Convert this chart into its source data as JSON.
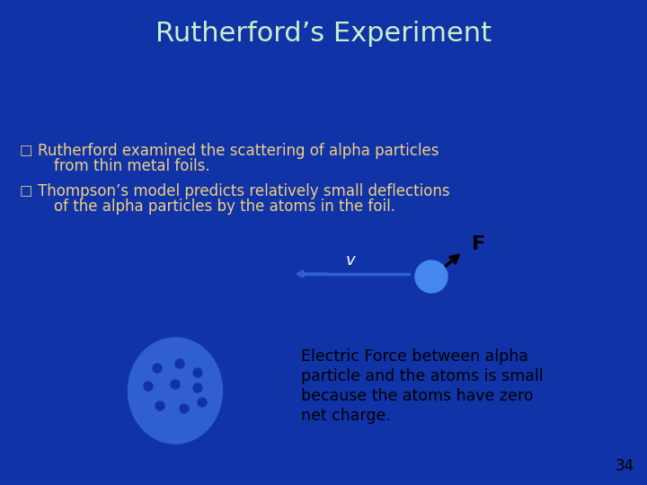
{
  "title": "Rutherford’s Experiment",
  "title_color": "#C8F0C8",
  "background_color": "#1033A8",
  "bullet_color": "#F0D080",
  "bullet_text_color": "#F0D080",
  "bullet1_line1": "Rutherford examined the scattering of alpha particles",
  "bullet1_line2": "from thin metal foils.",
  "bullet2_line1": "Thompson’s model predicts relatively small deflections",
  "bullet2_line2": "of the alpha particles by the atoms in the foil.",
  "electric_text_color": "#000000",
  "electric_line1": "Electric Force between alpha",
  "electric_line2": "particle and the atoms is small",
  "electric_line3": "because the atoms have zero",
  "electric_line4": "net charge.",
  "page_number": "34",
  "velocity_label": "v",
  "force_label": "F",
  "atom_color": "#3060D0",
  "atom_dot_color": "#1033A8",
  "alpha_particle_color": "#4488EE",
  "arrow_color": "#3060D0"
}
